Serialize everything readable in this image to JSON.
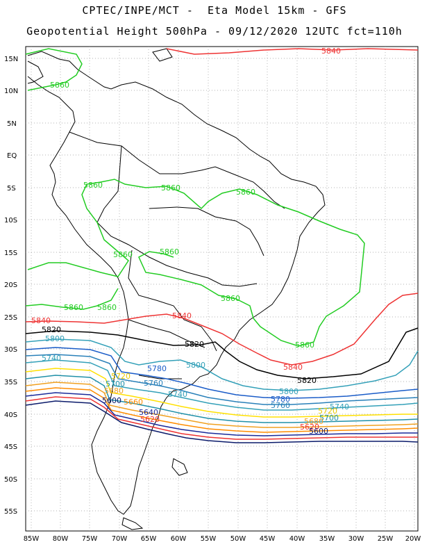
{
  "header": {
    "line1": "CPTEC/INPE/MCT -  Eta Model 15km - GFS",
    "line2": "Geopotential Height 500hPa - 09/12/2020 12UTC fct=110h"
  },
  "axes": {
    "lat_labels": [
      "15N",
      "10N",
      "5N",
      "EQ",
      "5S",
      "10S",
      "15S",
      "20S",
      "25S",
      "30S",
      "35S",
      "40S",
      "45S",
      "50S",
      "55S"
    ],
    "lon_labels": [
      "85W",
      "80W",
      "75W",
      "70W",
      "65W",
      "60W",
      "55W",
      "50W",
      "45W",
      "40W",
      "35W",
      "30W",
      "25W",
      "20W"
    ]
  },
  "contours": [
    {
      "value": "5860",
      "color": "#22cc22",
      "labels": [
        "5860",
        "5860",
        "5860",
        "5860",
        "5860",
        "5860",
        "5860",
        "5860",
        "5860",
        "5860"
      ]
    },
    {
      "value": "5840",
      "color": "#ee3333",
      "labels": [
        "5840",
        "5840",
        "5840",
        "5840"
      ]
    },
    {
      "value": "5820",
      "color": "#000000",
      "labels": [
        "5820",
        "5820",
        "5820"
      ]
    },
    {
      "value": "5800",
      "color": "#33a0b8",
      "labels": [
        "5800",
        "5800",
        "5800"
      ]
    },
    {
      "value": "5780",
      "color": "#1a5cc8",
      "labels": [
        "5780",
        "5780"
      ]
    },
    {
      "value": "5760",
      "color": "#2980b9",
      "labels": [
        "5760",
        "5760"
      ]
    },
    {
      "value": "5740",
      "color": "#33a0b8",
      "labels": [
        "5740",
        "5740",
        "5740"
      ]
    },
    {
      "value": "5720",
      "color": "#ffe000",
      "labels": [
        "5720",
        "5720"
      ]
    },
    {
      "value": "5700",
      "color": "#2090a8",
      "labels": [
        "5700",
        "5700"
      ]
    },
    {
      "value": "5680",
      "color": "#f0a020",
      "labels": [
        "5680",
        "5680"
      ]
    },
    {
      "value": "5660",
      "color": "#ff8c00",
      "labels": [
        "5660"
      ]
    },
    {
      "value": "5640",
      "color": "#1a2a9a",
      "labels": [
        "5640"
      ]
    },
    {
      "value": "5620",
      "color": "#ee3333",
      "labels": [
        "5620",
        "5620"
      ]
    },
    {
      "value": "5600",
      "color": "#0a1a6a",
      "labels": [
        "5600",
        "5600"
      ]
    }
  ]
}
